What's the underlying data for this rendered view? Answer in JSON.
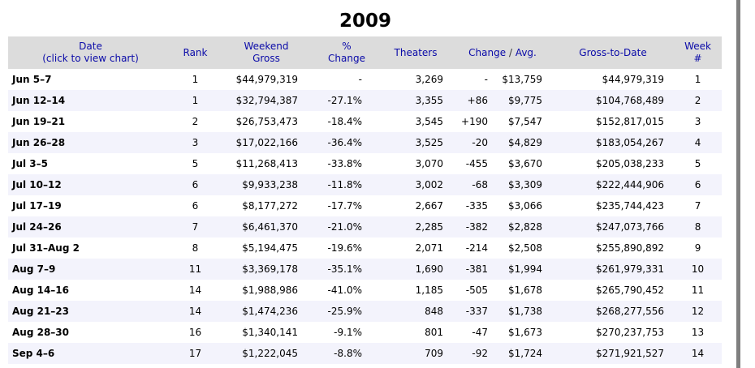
{
  "year": "2009",
  "headers": {
    "date_line1": "Date",
    "date_line2": "(click to view chart)",
    "rank": "Rank",
    "weekend_line1": "Weekend",
    "weekend_line2": "Gross",
    "pct_line1": "%",
    "pct_line2": "Change",
    "theaters": "Theaters",
    "change": "Change",
    "sep": "/",
    "avg": "Avg.",
    "gross_to_date": "Gross-to-Date",
    "week_line1": "Week",
    "week_line2": "#"
  },
  "rows": [
    {
      "date": "Jun 5–7",
      "rank": "1",
      "gross": "$44,979,319",
      "pct": "-",
      "theaters": "3,269",
      "change": "-",
      "avg": "$13,759",
      "to_date": "$44,979,319",
      "week": "1",
      "pct_sign": "neu",
      "change_sign": "neu"
    },
    {
      "date": "Jun 12–14",
      "rank": "1",
      "gross": "$32,794,387",
      "pct": "-27.1%",
      "theaters": "3,355",
      "change": "+86",
      "avg": "$9,775",
      "to_date": "$104,768,489",
      "week": "2",
      "pct_sign": "neg",
      "change_sign": "pos"
    },
    {
      "date": "Jun 19–21",
      "rank": "2",
      "gross": "$26,753,473",
      "pct": "-18.4%",
      "theaters": "3,545",
      "change": "+190",
      "avg": "$7,547",
      "to_date": "$152,817,015",
      "week": "3",
      "pct_sign": "neg",
      "change_sign": "pos"
    },
    {
      "date": "Jun 26–28",
      "rank": "3",
      "gross": "$17,022,166",
      "pct": "-36.4%",
      "theaters": "3,525",
      "change": "-20",
      "avg": "$4,829",
      "to_date": "$183,054,267",
      "week": "4",
      "pct_sign": "neg",
      "change_sign": "neg"
    },
    {
      "date": "Jul 3–5",
      "rank": "5",
      "gross": "$11,268,413",
      "pct": "-33.8%",
      "theaters": "3,070",
      "change": "-455",
      "avg": "$3,670",
      "to_date": "$205,038,233",
      "week": "5",
      "pct_sign": "neg",
      "change_sign": "neg"
    },
    {
      "date": "Jul 10–12",
      "rank": "6",
      "gross": "$9,933,238",
      "pct": "-11.8%",
      "theaters": "3,002",
      "change": "-68",
      "avg": "$3,309",
      "to_date": "$222,444,906",
      "week": "6",
      "pct_sign": "neg",
      "change_sign": "neg"
    },
    {
      "date": "Jul 17–19",
      "rank": "6",
      "gross": "$8,177,272",
      "pct": "-17.7%",
      "theaters": "2,667",
      "change": "-335",
      "avg": "$3,066",
      "to_date": "$235,744,423",
      "week": "7",
      "pct_sign": "neg",
      "change_sign": "neg"
    },
    {
      "date": "Jul 24–26",
      "rank": "7",
      "gross": "$6,461,370",
      "pct": "-21.0%",
      "theaters": "2,285",
      "change": "-382",
      "avg": "$2,828",
      "to_date": "$247,073,766",
      "week": "8",
      "pct_sign": "neg",
      "change_sign": "neg"
    },
    {
      "date": "Jul 31–Aug 2",
      "rank": "8",
      "gross": "$5,194,475",
      "pct": "-19.6%",
      "theaters": "2,071",
      "change": "-214",
      "avg": "$2,508",
      "to_date": "$255,890,892",
      "week": "9",
      "pct_sign": "neg",
      "change_sign": "neg"
    },
    {
      "date": "Aug 7–9",
      "rank": "11",
      "gross": "$3,369,178",
      "pct": "-35.1%",
      "theaters": "1,690",
      "change": "-381",
      "avg": "$1,994",
      "to_date": "$261,979,331",
      "week": "10",
      "pct_sign": "neg",
      "change_sign": "neg"
    },
    {
      "date": "Aug 14–16",
      "rank": "14",
      "gross": "$1,988,986",
      "pct": "-41.0%",
      "theaters": "1,185",
      "change": "-505",
      "avg": "$1,678",
      "to_date": "$265,790,452",
      "week": "11",
      "pct_sign": "neg",
      "change_sign": "neg"
    },
    {
      "date": "Aug 21–23",
      "rank": "14",
      "gross": "$1,474,236",
      "pct": "-25.9%",
      "theaters": "848",
      "change": "-337",
      "avg": "$1,738",
      "to_date": "$268,277,556",
      "week": "12",
      "pct_sign": "neg",
      "change_sign": "neg"
    },
    {
      "date": "Aug 28–30",
      "rank": "16",
      "gross": "$1,340,141",
      "pct": "-9.1%",
      "theaters": "801",
      "change": "-47",
      "avg": "$1,673",
      "to_date": "$270,237,753",
      "week": "13",
      "pct_sign": "neg",
      "change_sign": "neg"
    },
    {
      "date": "Sep 4–6",
      "rank": "17",
      "gross": "$1,222,045",
      "pct": "-8.8%",
      "theaters": "709",
      "change": "-92",
      "avg": "$1,724",
      "to_date": "$271,921,527",
      "week": "14",
      "pct_sign": "neg",
      "change_sign": "neg"
    }
  ]
}
